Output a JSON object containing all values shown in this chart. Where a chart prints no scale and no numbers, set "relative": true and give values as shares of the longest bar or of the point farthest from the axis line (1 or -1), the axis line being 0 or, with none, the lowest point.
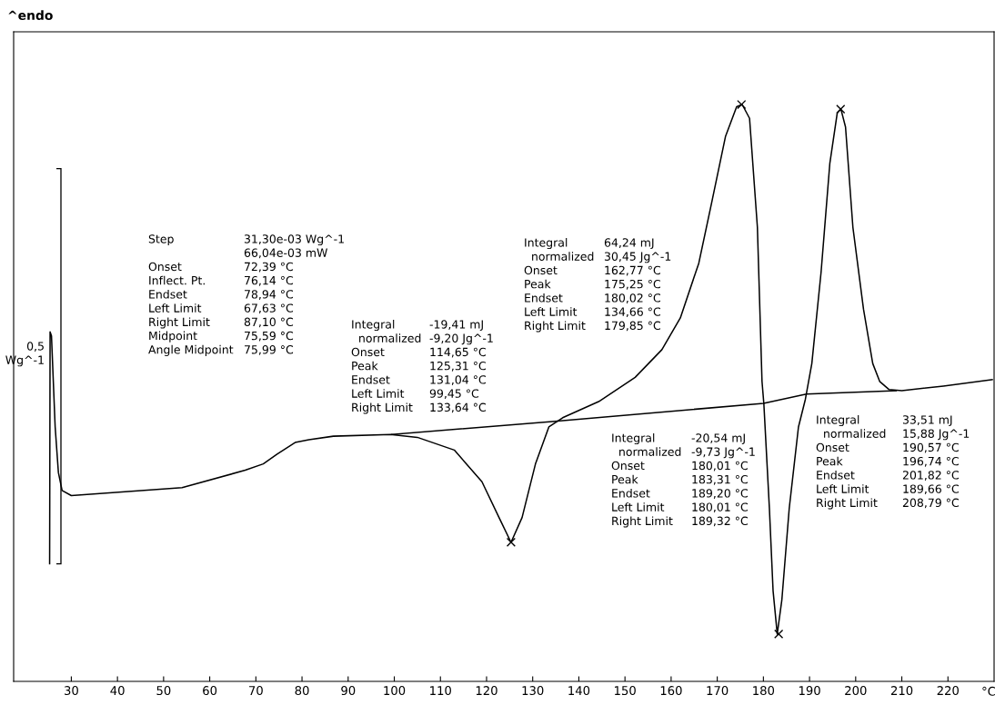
{
  "chart_data": {
    "type": "line",
    "title": "^endo",
    "xlabel": "°C",
    "relative": true,
    "xlim": [
      17.5,
      230
    ],
    "xticks": [
      30,
      40,
      50,
      60,
      70,
      80,
      90,
      100,
      110,
      120,
      130,
      140,
      150,
      160,
      170,
      180,
      190,
      200,
      210,
      220
    ],
    "grid": false,
    "legend": false,
    "line_style": "solid",
    "series": [
      {
        "type": "line",
        "color": "#000000",
        "marker": "none",
        "x": [
          25.3,
          25.4,
          25.7,
          26.5,
          27.2,
          28.0,
          30,
          54,
          67.7,
          71.6,
          74.6,
          78.5,
          81.5,
          86.8,
          99.2,
          105,
          113,
          119,
          122.7,
          125.3,
          127.7,
          130.6,
          133.5,
          136.5,
          144.3,
          152.2,
          158,
          162,
          166,
          168.9,
          171.8,
          174.2,
          175.4,
          177,
          178.7,
          179.7,
          180.1,
          181.3,
          182.1,
          183.0,
          184,
          185.6,
          187.6,
          189.1,
          190.5,
          192.5,
          194.4,
          196,
          196.8,
          197.8,
          199.4,
          201.7,
          203.7,
          205.2,
          207.2,
          210,
          219,
          229.6
        ],
        "values": [
          0.204,
          0.606,
          0.599,
          0.441,
          0.362,
          0.331,
          0.322,
          0.336,
          0.366,
          0.377,
          0.394,
          0.414,
          0.419,
          0.425,
          0.428,
          0.423,
          0.401,
          0.346,
          0.284,
          0.241,
          0.284,
          0.377,
          0.441,
          0.457,
          0.485,
          0.527,
          0.575,
          0.63,
          0.725,
          0.834,
          0.945,
          0.996,
          1,
          0.976,
          0.787,
          0.52,
          0.481,
          0.3,
          0.157,
          0.082,
          0.141,
          0.3,
          0.441,
          0.489,
          0.551,
          0.709,
          0.898,
          0.985,
          0.992,
          0.961,
          0.787,
          0.645,
          0.551,
          0.52,
          0.506,
          0.504,
          0.512,
          0.523
        ]
      },
      {
        "type": "line",
        "color": "#000000",
        "marker": "none",
        "x": [
          99.45,
          133.64,
          180.01,
          189.32,
          208.79
        ],
        "values": [
          0.428,
          0.45,
          0.482,
          0.498,
          0.504
        ]
      },
      {
        "type": "scatter",
        "color": "#000000",
        "marker": "cross",
        "x": [
          125.31,
          175.25,
          183.31,
          196.74
        ],
        "values": [
          0.241,
          1,
          0.082,
          0.992
        ]
      }
    ],
    "annotations": [
      "Step\n\nOnset\nInflect. Pt.\nEndset\nLeft Limit\nRight Limit\nMidpoint\nAngle Midpoint",
      "31,30e-03 Wg^-1\n66,04e-03 mW\n72,39 °C\n76,14 °C\n78,94 °C\n67,63 °C\n87,10 °C\n75,59 °C\n75,99 °C",
      "Integral\n  normalized\nOnset\nPeak\nEndset\nLeft Limit\nRight Limit",
      "-19,41 mJ\n-9,20 Jg^-1\n114,65 °C\n125,31 °C\n131,04 °C\n99,45 °C\n133,64 °C",
      "Integral\n  normalized\nOnset\nPeak\nEndset\nLeft Limit\nRight Limit",
      "64,24 mJ\n30,45 Jg^-1\n162,77 °C\n175,25 °C\n180,02 °C\n134,66 °C\n179,85 °C",
      "Integral\n  normalized\nOnset\nPeak\nEndset\nLeft Limit\nRight Limit",
      "-20,54 mJ\n-9,73 Jg^-1\n180,01 °C\n183,31 °C\n189,20 °C\n180,01 °C\n189,32 °C",
      "Integral\n  normalized\nOnset\nPeak\nEndset\nLeft Limit\nRight Limit",
      "33,51 mJ\n15,88 Jg^-1\n190,57 °C\n196,74 °C\n201,82 °C\n189,66 °C\n208,79 °C",
      "0,5\nWg^-1"
    ]
  }
}
